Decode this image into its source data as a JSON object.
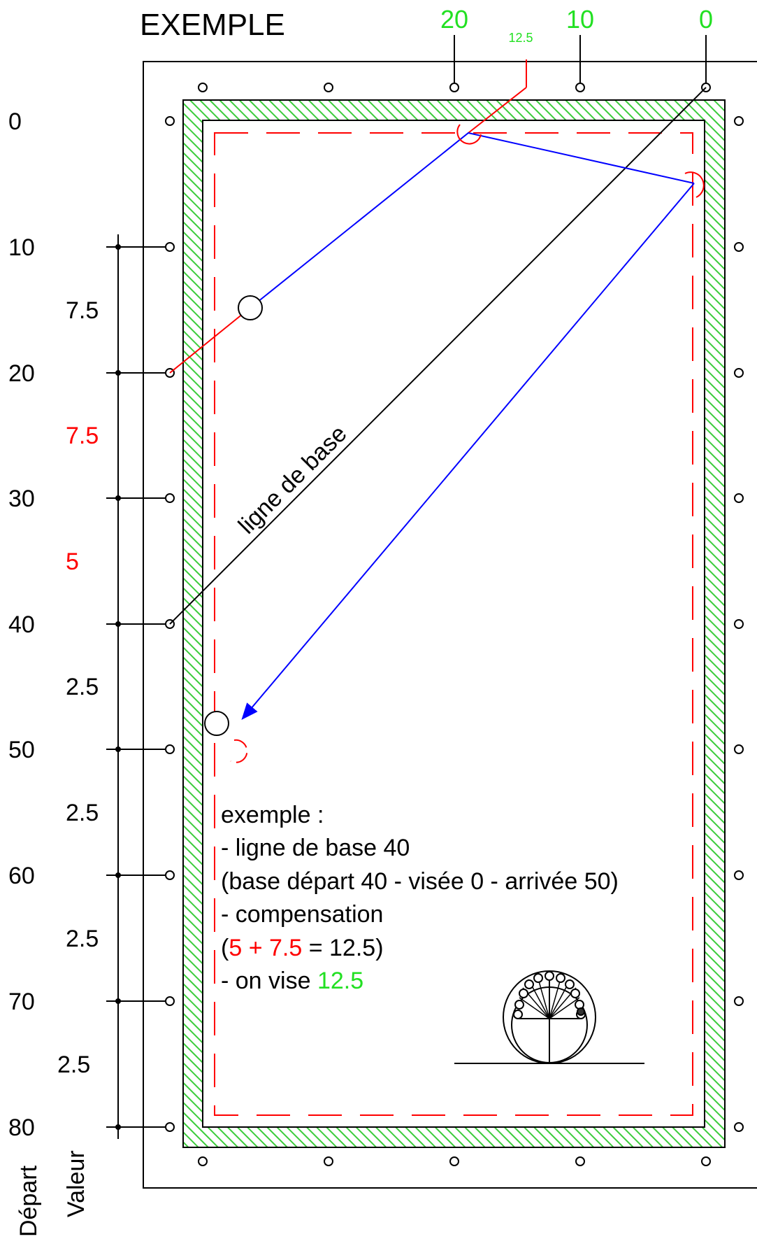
{
  "title": "EXEMPLE",
  "top_scale": {
    "labels": [
      "20",
      "10",
      "0"
    ],
    "aim_label": "12.5"
  },
  "left_scale": {
    "depart_values": [
      "0",
      "10",
      "20",
      "30",
      "40",
      "50",
      "60",
      "70",
      "80"
    ],
    "valeur_values": [
      "7.5",
      "7.5",
      "5",
      "2.5",
      "2.5",
      "2.5",
      "2.5"
    ],
    "depart_header": "Départ",
    "valeur_header": "Valeur"
  },
  "baseline_label": "ligne de base",
  "example_note": {
    "line1": "exemple :",
    "line2": "- ligne de base 40",
    "line3": "(base départ 40 - visée 0 - arrivée 50)",
    "line4": "- compensation",
    "line5_open": "(",
    "line5_a": "5",
    "line5_plus": " + ",
    "line5_b": "7.5",
    "line5_rest": " = 12.5)",
    "line6_prefix": "- on vise ",
    "line6_value": "12.5"
  },
  "colors": {
    "green": "#22e022",
    "red": "#ff0000",
    "blue": "#0000ff",
    "black": "#000000",
    "hatch": "#3ccc3c"
  }
}
